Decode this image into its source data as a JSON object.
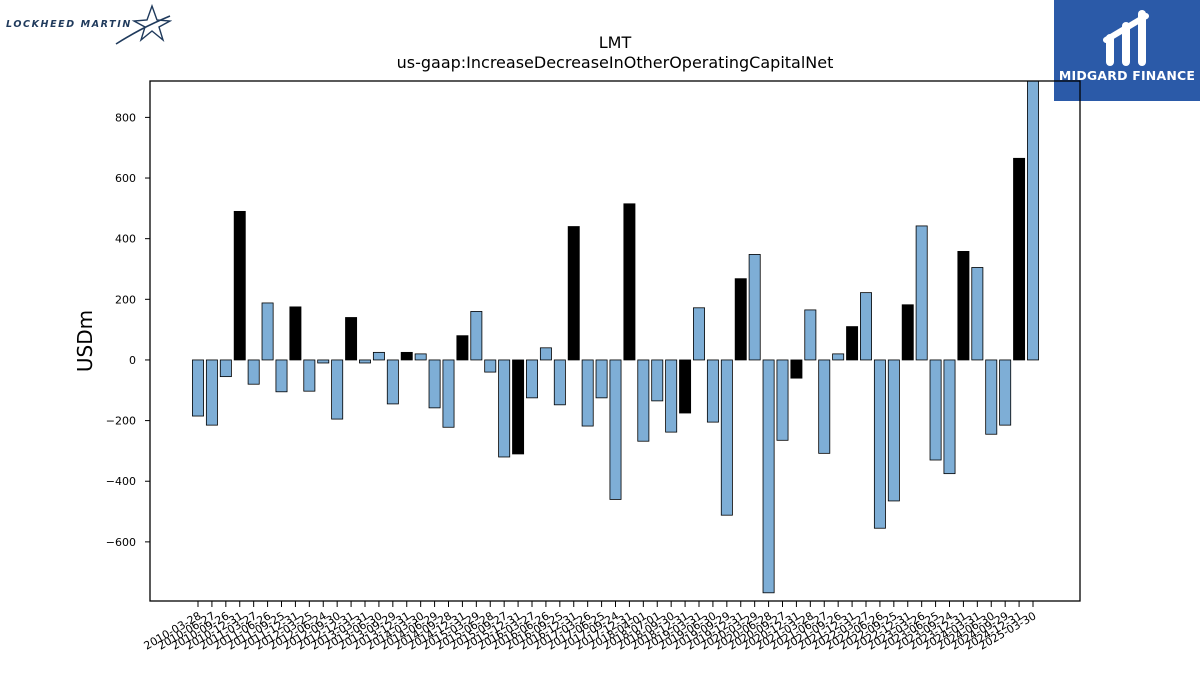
{
  "logos": {
    "left_text": "LOCKHEED MARTIN",
    "right_text": "MIDGARD FINANCE"
  },
  "colors": {
    "bar_normal": "#7eaed6",
    "bar_highlight": "#000000",
    "bar_edge": "#000000",
    "brand_blue": "#2b5aa8"
  },
  "chart_data": {
    "type": "bar",
    "title": "LMT",
    "subtitle": "us-gaap:IncreaseDecreaseInOtherOperatingCapitalNet",
    "xlabel": "",
    "ylabel": "USDm",
    "ylim": [
      -795,
      920
    ],
    "yticks": [
      -600,
      -400,
      -200,
      0,
      200,
      400,
      600,
      800
    ],
    "grid": false,
    "categories": [
      "2010-03-28",
      "2010-06-27",
      "2010-09-26",
      "2010-12-31",
      "2011-03-27",
      "2011-06-26",
      "2011-09-25",
      "2011-12-31",
      "2012-03-25",
      "2012-06-24",
      "2012-09-30",
      "2012-12-31",
      "2013-03-31",
      "2013-06-30",
      "2013-09-29",
      "2013-12-31",
      "2014-03-30",
      "2014-06-29",
      "2014-09-28",
      "2014-12-31",
      "2015-03-29",
      "2015-06-28",
      "2015-09-27",
      "2015-12-31",
      "2016-03-27",
      "2016-06-26",
      "2016-09-25",
      "2016-12-31",
      "2017-03-26",
      "2017-06-25",
      "2017-09-24",
      "2017-12-31",
      "2018-04-01",
      "2018-07-01",
      "2018-09-30",
      "2018-12-31",
      "2019-03-31",
      "2019-06-30",
      "2019-09-29",
      "2019-12-31",
      "2020-03-29",
      "2020-06-28",
      "2020-09-27",
      "2020-12-31",
      "2021-03-28",
      "2021-06-27",
      "2021-09-26",
      "2021-12-31",
      "2022-03-27",
      "2022-06-26",
      "2022-09-25",
      "2022-12-31",
      "2023-03-26",
      "2023-06-25",
      "2023-09-24",
      "2023-12-31",
      "2024-03-31",
      "2024-06-30",
      "2024-09-29",
      "2024-12-31",
      "2025-03-30"
    ],
    "visible_tick_labels": [
      "2010-03-28",
      "2010-06-27",
      "2010-09-26",
      "2010-12-31",
      "2011-03-27",
      "2011-06-26",
      "2011-09-25",
      "2011-12-31",
      "2012-03-25",
      "2012-06-24",
      "2012-09-30",
      "2012-12-31",
      "2013-03-31",
      "2013-06-30",
      "2013-09-29",
      "2013-12-31",
      "2014-03-30",
      "2014-06-29",
      "2014-09-28",
      "2014-12-31",
      "2015-03-29",
      "2015-06-28",
      "2015-09-27",
      "2015-12-31",
      "2016-03-27",
      "2016-06-26",
      "2016-09-25",
      "2016-12-31",
      "2017-03-26",
      "2017-06-25",
      "2017-09-24",
      "2017-12-31",
      "2018-04-01",
      "2018-07-01",
      "2018-09-30",
      "2018-12-31",
      "2019-03-31",
      "2019-06-30",
      "2019-09-29",
      "2019-12-31",
      "2020-03-29",
      "2020-06-28",
      "2020-09-27",
      "2020-12-31",
      "2021-03-28",
      "2021-06-27",
      "2021-09-26",
      "2021-12-31",
      "2022-03-27",
      "2022-06-26",
      "2022-09-25",
      "2022-12-31",
      "2023-03-26",
      "2023-06-25",
      "2023-09-24",
      "2023-12-31",
      "2024-03-31",
      "2024-06-30",
      "2024-09-29",
      "2024-12-31",
      "2025-03-30"
    ],
    "values": [
      -185,
      -215,
      -55,
      490,
      -80,
      188,
      -105,
      175,
      -103,
      -10,
      -195,
      140,
      -10,
      25,
      -145,
      25,
      20,
      -158,
      -222,
      80,
      160,
      -40,
      -320,
      -310,
      -125,
      40,
      -148,
      440,
      -218,
      -125,
      -460,
      515,
      -268,
      -135,
      -238,
      -175,
      172,
      -205,
      -512,
      268,
      348,
      -768,
      -265,
      -60,
      165,
      -308,
      20,
      110,
      222,
      -555,
      -465,
      182,
      442,
      -330,
      -375,
      358,
      305,
      -245,
      -215,
      665,
      920
    ],
    "highlight": [
      false,
      false,
      false,
      true,
      false,
      false,
      false,
      true,
      false,
      false,
      false,
      true,
      false,
      false,
      false,
      true,
      false,
      false,
      false,
      true,
      false,
      false,
      false,
      true,
      false,
      false,
      false,
      true,
      false,
      false,
      false,
      true,
      false,
      false,
      false,
      true,
      false,
      false,
      false,
      true,
      false,
      false,
      false,
      true,
      false,
      false,
      false,
      true,
      false,
      false,
      false,
      true,
      false,
      false,
      false,
      true,
      false,
      false,
      false,
      true,
      false
    ]
  }
}
